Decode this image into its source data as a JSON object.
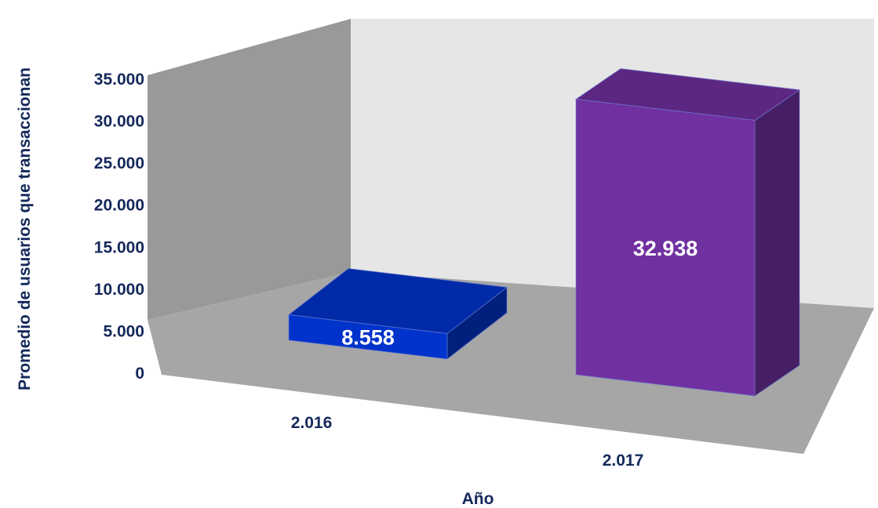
{
  "chart_data": {
    "type": "bar",
    "categories": [
      "2.016",
      "2.017"
    ],
    "values": [
      8558,
      32938
    ],
    "value_labels": [
      "8.558",
      "32.938"
    ],
    "xlabel": "Año",
    "ylabel": "Promedio de usuarios que transaccionan",
    "ylim": [
      0,
      35000
    ],
    "yticks": [
      0,
      5000,
      10000,
      15000,
      20000,
      25000,
      30000,
      35000
    ],
    "ytick_labels": [
      "0",
      "5.000",
      "10.000",
      "15.000",
      "20.000",
      "25.000",
      "30.000",
      "35.000"
    ],
    "grid": false,
    "legend": "none",
    "style": "3d-column",
    "colors": {
      "bars": [
        "#0033cc",
        "#7030a0"
      ],
      "floor": "#a6a6a6",
      "back_wall": "#e6e6e6",
      "side_wall": "#999999",
      "axis_text": "#14285a",
      "value_text": "#ffffff"
    }
  }
}
